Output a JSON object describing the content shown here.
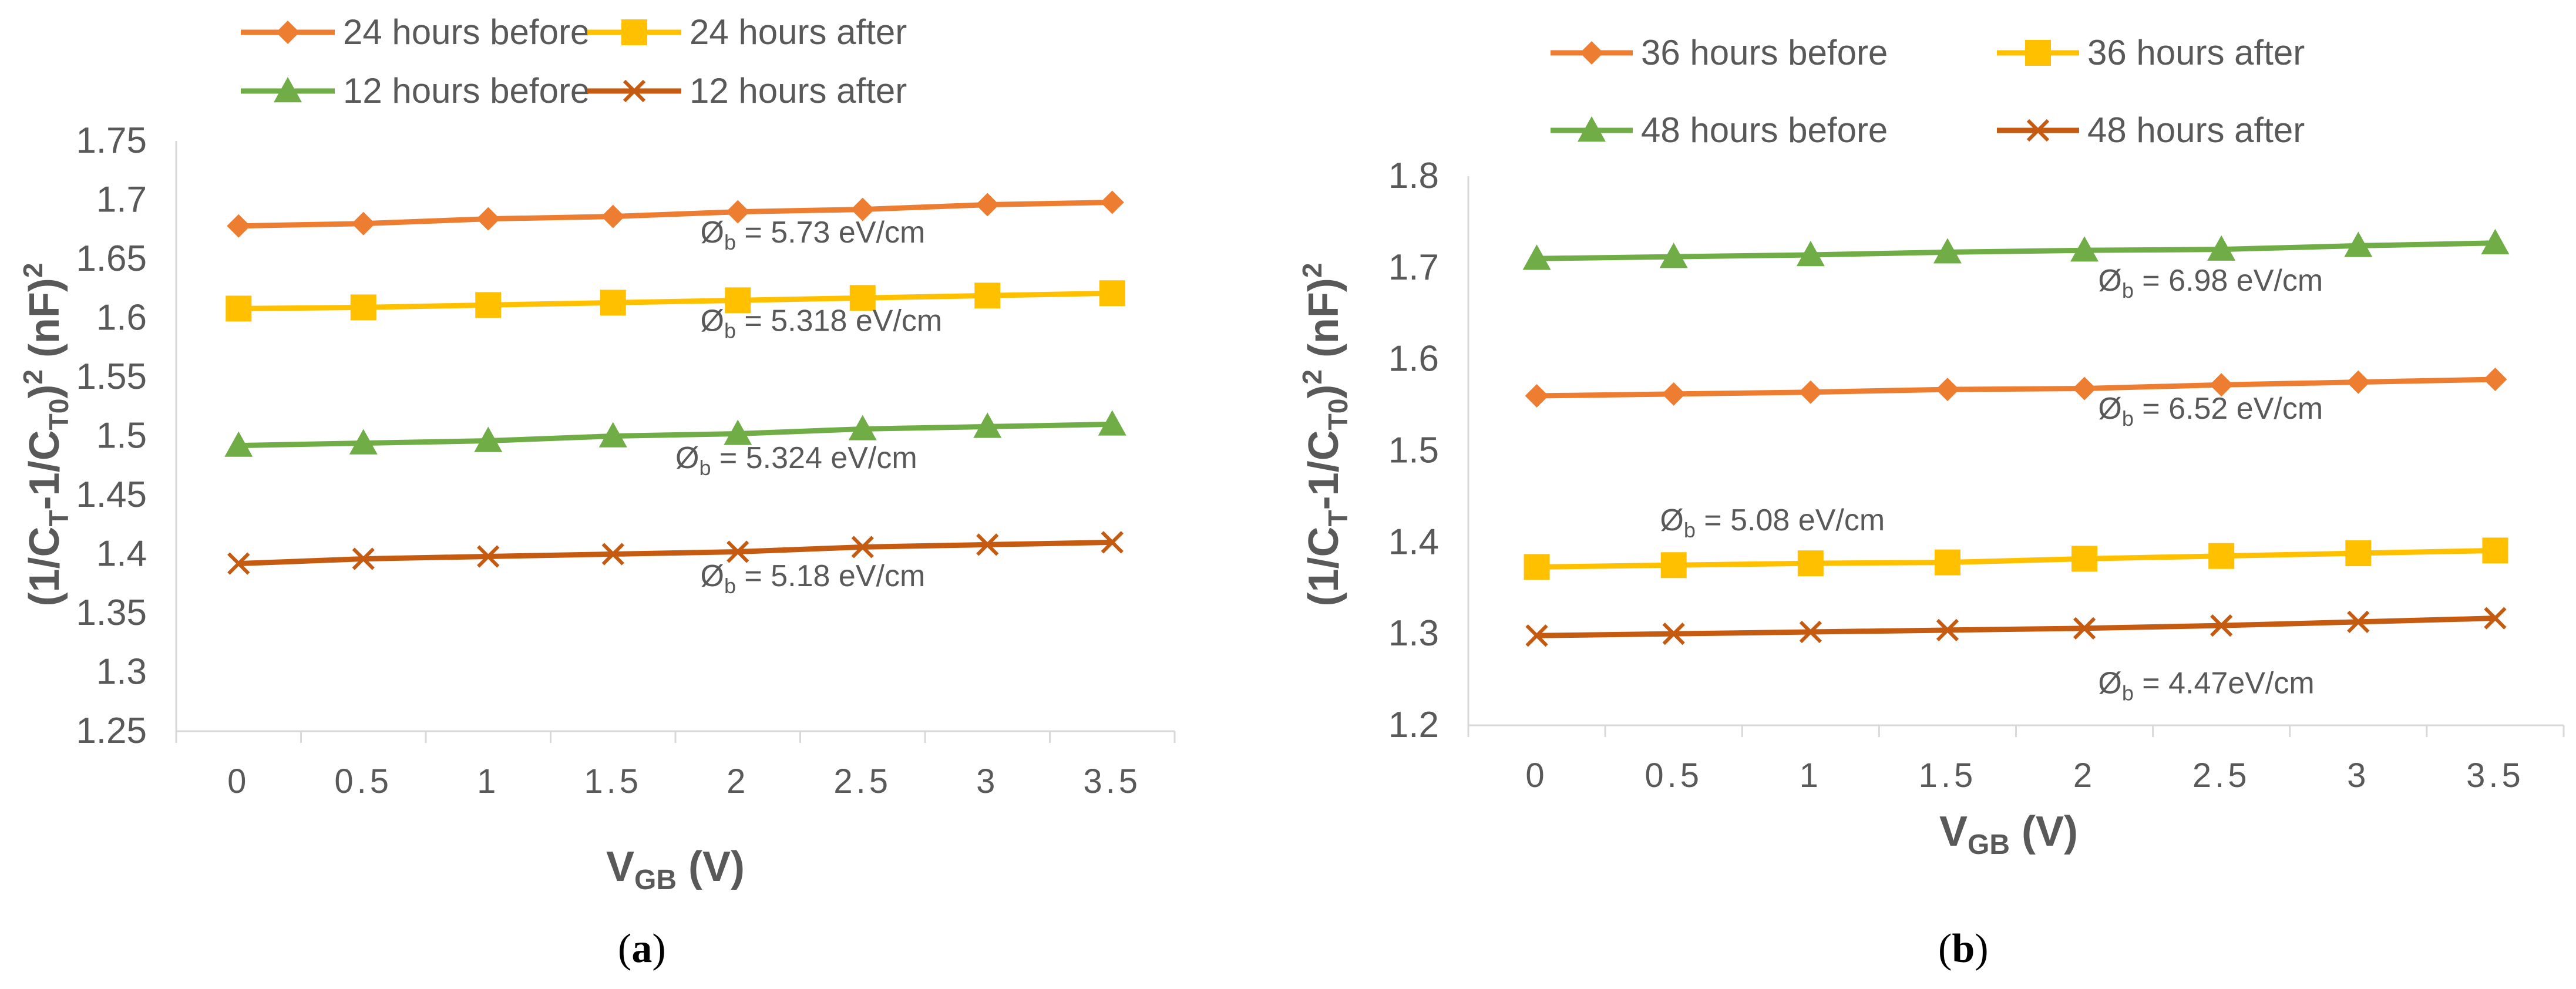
{
  "chart_data": [
    {
      "panel_label": "(a)",
      "type": "line",
      "x": [
        0,
        0.5,
        1,
        1.5,
        2,
        2.5,
        3,
        3.5
      ],
      "x_tick_labels": [
        "0",
        "0.5",
        "1",
        "1.5",
        "2",
        "2.5",
        "3",
        "3.5"
      ],
      "ylim": [
        1.25,
        1.75
      ],
      "y_ticks": [
        1.25,
        1.3,
        1.35,
        1.4,
        1.45,
        1.5,
        1.55,
        1.6,
        1.65,
        1.7,
        1.75
      ],
      "y_tick_labels": [
        "1.25",
        "1.3",
        "1.35",
        "1.4",
        "1.45",
        "1.5",
        "1.55",
        "1.6",
        "1.65",
        "1.7",
        "1.75"
      ],
      "xlabel": {
        "main": "V",
        "sub": "GB",
        "rest": " (V)"
      },
      "ylabel": {
        "p1": "(1/C",
        "s1": "T",
        "p2": "-1/C",
        "s2": "T0",
        "p3": ")",
        "sup1": "2",
        "p4": " (nF)",
        "sup2": "2"
      },
      "grid": false,
      "legend_position": "top",
      "series": [
        {
          "name": "24 hours before",
          "color": "#ED7D31",
          "marker": "diamond",
          "values": [
            1.678,
            1.68,
            1.684,
            1.686,
            1.69,
            1.692,
            1.696,
            1.698
          ]
        },
        {
          "name": "24 hours after",
          "color": "#FFC000",
          "marker": "square",
          "values": [
            1.608,
            1.609,
            1.611,
            1.613,
            1.615,
            1.617,
            1.619,
            1.621
          ]
        },
        {
          "name": "12 hours before",
          "color": "#70AD47",
          "marker": "triangle",
          "values": [
            1.492,
            1.494,
            1.496,
            1.5,
            1.502,
            1.506,
            1.508,
            1.51
          ]
        },
        {
          "name": "12 hours after",
          "color": "#C55A11",
          "marker": "x",
          "values": [
            1.392,
            1.396,
            1.398,
            1.4,
            1.402,
            1.406,
            1.408,
            1.41
          ]
        }
      ],
      "annotations": [
        {
          "text": "Ø",
          "sub": "b",
          "value": " = 5.73 eV/cm",
          "x": 1.85,
          "y": 1.664
        },
        {
          "text": "Ø",
          "sub": "b",
          "value": " = 5.318 eV/cm",
          "x": 1.85,
          "y": 1.589
        },
        {
          "text": "Ø",
          "sub": "b",
          "value": " = 5.324 eV/cm",
          "x": 1.75,
          "y": 1.473
        },
        {
          "text": "Ø",
          "sub": "b",
          "value": "  = 5.18 eV/cm",
          "x": 1.85,
          "y": 1.373
        }
      ]
    },
    {
      "panel_label": "(b)",
      "type": "line",
      "x": [
        0,
        0.5,
        1,
        1.5,
        2,
        2.5,
        3,
        3.5
      ],
      "x_tick_labels": [
        "0",
        "0.5",
        "1",
        "1.5",
        "2",
        "2.5",
        "3",
        "3.5"
      ],
      "ylim": [
        1.2,
        1.8
      ],
      "y_ticks": [
        1.2,
        1.3,
        1.4,
        1.5,
        1.6,
        1.7,
        1.8
      ],
      "y_tick_labels": [
        "1.2",
        "1.3",
        "1.4",
        "1.5",
        "1.6",
        "1.7",
        "1.8"
      ],
      "xlabel": {
        "main": "V",
        "sub": "GB",
        "rest": " (V)"
      },
      "ylabel": {
        "p1": "(1/C",
        "s1": "T",
        "p2": "-1/C",
        "s2": "T0",
        "p3": ")",
        "sup1": "2",
        "p4": " (nF)",
        "sup2": "2"
      },
      "grid": false,
      "legend_position": "top",
      "series": [
        {
          "name": "36  hours before",
          "color": "#ED7D31",
          "marker": "diamond",
          "values": [
            1.56,
            1.562,
            1.564,
            1.567,
            1.568,
            1.572,
            1.575,
            1.578
          ]
        },
        {
          "name": "36  hours after",
          "color": "#FFC000",
          "marker": "square",
          "values": [
            1.373,
            1.375,
            1.377,
            1.378,
            1.382,
            1.385,
            1.388,
            1.391
          ]
        },
        {
          "name": "48 hours before",
          "color": "#70AD47",
          "marker": "triangle",
          "values": [
            1.71,
            1.712,
            1.714,
            1.717,
            1.719,
            1.72,
            1.724,
            1.727
          ]
        },
        {
          "name": "48 hours after",
          "color": "#C55A11",
          "marker": "x",
          "values": [
            1.298,
            1.3,
            1.302,
            1.304,
            1.306,
            1.309,
            1.313,
            1.317
          ]
        }
      ],
      "annotations": [
        {
          "text": "Ø",
          "sub": "b",
          "value": "  = 6.98 eV/cm",
          "x": 2.05,
          "y": 1.675
        },
        {
          "text": "Ø",
          "sub": "b",
          "value": "  = 6.52 eV/cm",
          "x": 2.05,
          "y": 1.535
        },
        {
          "text": "Ø",
          "sub": "b",
          "value": "  = 5.08 eV/cm",
          "x": 0.45,
          "y": 1.413
        },
        {
          "text": "Ø",
          "sub": "b",
          "value": "  = 4.47eV/cm",
          "x": 2.05,
          "y": 1.235
        }
      ]
    }
  ]
}
